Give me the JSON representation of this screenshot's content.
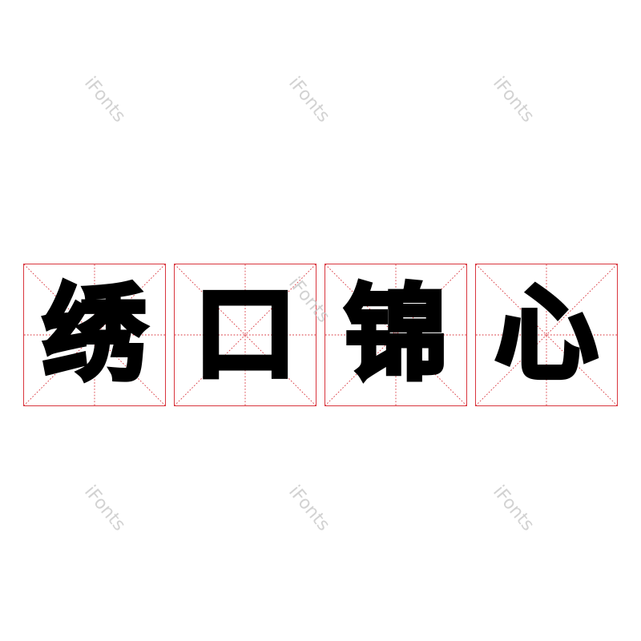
{
  "characters": [
    "绣",
    "口",
    "锦",
    "心"
  ],
  "watermark": "iFonts",
  "colors": {
    "grid": "#d9363e",
    "glyph": "#000000",
    "watermark": "#c8c8c8"
  }
}
